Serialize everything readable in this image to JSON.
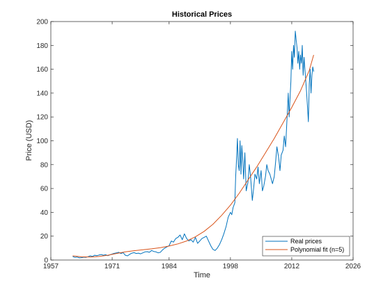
{
  "chart_data": {
    "type": "line",
    "title": "Historical Prices",
    "xlabel": "Time",
    "ylabel": "Price (USD)",
    "xlim": [
      1957,
      2026
    ],
    "ylim": [
      0,
      200
    ],
    "xticks": [
      1957,
      1971,
      1984,
      1998,
      2012,
      2026
    ],
    "yticks": [
      0,
      20,
      40,
      60,
      80,
      100,
      120,
      140,
      160,
      180,
      200
    ],
    "grid": false,
    "legend_position": "bottom-right",
    "series": [
      {
        "name": "Real prices",
        "color": "#0072BD",
        "x": [
          1962.0,
          1962.5,
          1963.0,
          1963.5,
          1964.0,
          1964.5,
          1965.0,
          1965.5,
          1966.0,
          1966.5,
          1967.0,
          1967.5,
          1968.0,
          1968.5,
          1969.0,
          1969.5,
          1970.0,
          1970.5,
          1971.0,
          1971.5,
          1972.0,
          1972.5,
          1973.0,
          1973.5,
          1974.0,
          1974.5,
          1975.0,
          1975.5,
          1976.0,
          1976.5,
          1977.0,
          1977.5,
          1978.0,
          1978.5,
          1979.0,
          1979.5,
          1980.0,
          1980.5,
          1981.0,
          1981.5,
          1982.0,
          1982.5,
          1983.0,
          1983.5,
          1984.0,
          1984.5,
          1985.0,
          1985.5,
          1986.0,
          1986.5,
          1987.0,
          1987.5,
          1988.0,
          1988.5,
          1989.0,
          1989.5,
          1990.0,
          1990.5,
          1991.0,
          1991.5,
          1992.0,
          1992.5,
          1993.0,
          1993.5,
          1994.0,
          1994.5,
          1995.0,
          1995.5,
          1996.0,
          1996.5,
          1997.0,
          1997.5,
          1998.0,
          1998.3,
          1998.6,
          1999.0,
          1999.2,
          1999.4,
          1999.6,
          1999.8,
          2000.0,
          2000.2,
          2000.4,
          2000.6,
          2000.8,
          2001.0,
          2001.3,
          2001.6,
          2002.0,
          2002.3,
          2002.6,
          2003.0,
          2003.3,
          2003.6,
          2004.0,
          2004.3,
          2004.6,
          2005.0,
          2005.3,
          2005.6,
          2006.0,
          2006.3,
          2006.6,
          2007.0,
          2007.3,
          2007.6,
          2008.0,
          2008.3,
          2008.6,
          2009.0,
          2009.3,
          2009.6,
          2010.0,
          2010.3,
          2010.6,
          2011.0,
          2011.2,
          2011.4,
          2011.6,
          2011.8,
          2012.0,
          2012.2,
          2012.4,
          2012.6,
          2012.8,
          2013.0,
          2013.2,
          2013.4,
          2013.6,
          2013.8,
          2014.0,
          2014.2,
          2014.4,
          2014.6,
          2014.8,
          2015.0,
          2015.2,
          2015.4,
          2015.6,
          2015.8,
          2016.0,
          2016.2,
          2016.4,
          2016.6,
          2016.8,
          2017.0
        ],
        "y": [
          3,
          2.2,
          2.5,
          1.8,
          2,
          2.4,
          2.3,
          2.8,
          3.5,
          3,
          4,
          3.6,
          4.2,
          4.6,
          4,
          4.5,
          3.6,
          4.4,
          5,
          5.6,
          6,
          6.5,
          5.5,
          6.2,
          4,
          3.5,
          4.8,
          5.8,
          6.2,
          5.5,
          5.8,
          5.2,
          6,
          6.8,
          7,
          6.5,
          8,
          7.2,
          6.8,
          6,
          6.5,
          8.5,
          10,
          11,
          12,
          16,
          15,
          18,
          19,
          21,
          17,
          22,
          18,
          16,
          17,
          15,
          19,
          14,
          16,
          18,
          19,
          20,
          16,
          12,
          9,
          8,
          10,
          13,
          17,
          22,
          28,
          36,
          40,
          38,
          44,
          48,
          70,
          85,
          102,
          80,
          75,
          100,
          72,
          96,
          85,
          68,
          90,
          58,
          65,
          80,
          70,
          50,
          60,
          72,
          68,
          78,
          64,
          75,
          58,
          62,
          70,
          80,
          75,
          72,
          68,
          64,
          70,
          82,
          95,
          86,
          75,
          88,
          92,
          104,
          95,
          125,
          140,
          120,
          135,
          150,
          175,
          160,
          180,
          170,
          192,
          185,
          178,
          165,
          175,
          160,
          172,
          165,
          180,
          155,
          170,
          160,
          150,
          140,
          128,
          116,
          148,
          160,
          140,
          155,
          162,
          158
        ]
      },
      {
        "name": "Polynomial fit (n=5)",
        "color": "#D95319",
        "x": [
          1962,
          1964,
          1966,
          1968,
          1970,
          1972,
          1974,
          1976,
          1978,
          1980,
          1982,
          1984,
          1986,
          1988,
          1990,
          1992,
          1994,
          1996,
          1998,
          2000,
          2002,
          2004,
          2006,
          2008,
          2010,
          2012,
          2014,
          2016,
          2017
        ],
        "y": [
          3.5,
          2.7,
          2.5,
          3,
          4,
          5.5,
          6.8,
          7.8,
          8.6,
          9.4,
          10.4,
          11.7,
          13.5,
          16,
          19.5,
          24,
          30,
          37.5,
          46,
          56,
          67,
          78,
          90,
          102,
          115,
          128,
          142,
          159,
          172
        ]
      }
    ]
  }
}
